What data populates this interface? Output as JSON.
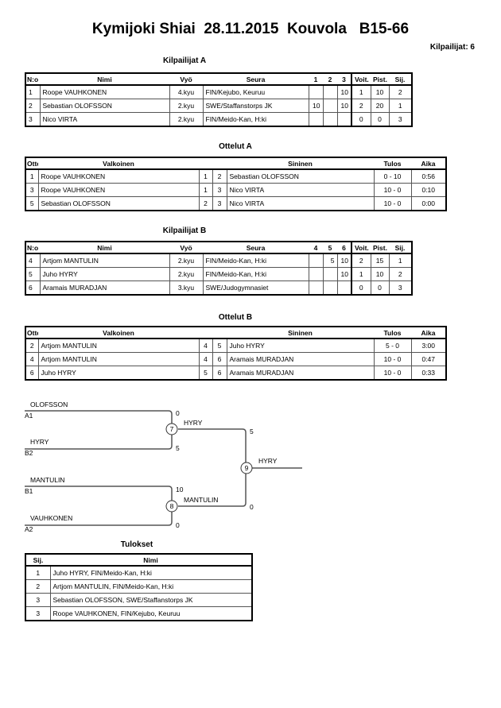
{
  "title": "Kymijoki Shiai  28.11.2015  Kouvola   B15-66",
  "competitors_count": "Kilpailijat: 6",
  "pools": [
    {
      "title": "Kilpailijat A",
      "headers": [
        "N:o",
        "Nimi",
        "Vyö",
        "Seura",
        "1",
        "2",
        "3",
        "Voit.",
        "Pist.",
        "Sij."
      ],
      "rows": [
        [
          "1",
          "Roope VAUHKONEN",
          "4.kyu",
          "FIN/Kejubo, Keuruu",
          "",
          "",
          "10",
          "1",
          "10",
          "2"
        ],
        [
          "2",
          "Sebastian OLOFSSON",
          "2.kyu",
          "SWE/Staffanstorps JK",
          "10",
          "",
          "10",
          "2",
          "20",
          "1"
        ],
        [
          "3",
          "Nico VIRTA",
          "2.kyu",
          "FIN/Meido-Kan, H:ki",
          "",
          "",
          "",
          "0",
          "0",
          "3"
        ]
      ]
    },
    {
      "title": "Kilpailijat B",
      "headers": [
        "N:o",
        "Nimi",
        "Vyö",
        "Seura",
        "4",
        "5",
        "6",
        "Voit.",
        "Pist.",
        "Sij."
      ],
      "rows": [
        [
          "4",
          "Artjom MANTULIN",
          "2.kyu",
          "FIN/Meido-Kan, H:ki",
          "",
          "5",
          "10",
          "2",
          "15",
          "1"
        ],
        [
          "5",
          "Juho HYRY",
          "2.kyu",
          "FIN/Meido-Kan, H:ki",
          "",
          "",
          "10",
          "1",
          "10",
          "2"
        ],
        [
          "6",
          "Aramais MURADJAN",
          "3.kyu",
          "SWE/Judogymnasiet",
          "",
          "",
          "",
          "0",
          "0",
          "3"
        ]
      ]
    }
  ],
  "matches": [
    {
      "title": "Ottelut A",
      "headers": [
        "Ottelu",
        "Valkoinen",
        "",
        "",
        "Sininen",
        "Tulos",
        "Aika"
      ],
      "rows": [
        [
          "1",
          "Roope VAUHKONEN",
          "1",
          "2",
          "Sebastian OLOFSSON",
          "0 - 10",
          "0:56"
        ],
        [
          "3",
          "Roope VAUHKONEN",
          "1",
          "3",
          "Nico VIRTA",
          "10 - 0",
          "0:10"
        ],
        [
          "5",
          "Sebastian OLOFSSON",
          "2",
          "3",
          "Nico VIRTA",
          "10 - 0",
          "0:00"
        ]
      ]
    },
    {
      "title": "Ottelut B",
      "headers": [
        "Ottelu",
        "Valkoinen",
        "",
        "",
        "Sininen",
        "Tulos",
        "Aika"
      ],
      "rows": [
        [
          "2",
          "Artjom MANTULIN",
          "4",
          "5",
          "Juho HYRY",
          "5 - 0",
          "3:00"
        ],
        [
          "4",
          "Artjom MANTULIN",
          "4",
          "6",
          "Aramais MURADJAN",
          "10 - 0",
          "0:47"
        ],
        [
          "6",
          "Juho HYRY",
          "5",
          "6",
          "Aramais MURADJAN",
          "10 - 0",
          "0:33"
        ]
      ]
    }
  ],
  "bracket": {
    "entries": [
      {
        "name": "OLOFSSON",
        "seed": "A1",
        "score": "0"
      },
      {
        "name": "HYRY",
        "seed": "B2",
        "score": "5"
      },
      {
        "name": "MANTULIN",
        "seed": "B1",
        "score": "10"
      },
      {
        "name": "VAUHKONEN",
        "seed": "A2",
        "score": "0"
      }
    ],
    "semis": [
      {
        "match": "7",
        "winner": "HYRY",
        "score": "5"
      },
      {
        "match": "8",
        "winner": "MANTULIN",
        "score": "0"
      }
    ],
    "final": {
      "match": "9",
      "winner": "HYRY"
    }
  },
  "results": {
    "title": "Tulokset",
    "headers": [
      "Sij.",
      "Nimi"
    ],
    "rows": [
      [
        "1",
        "Juho HYRY, FIN/Meido-Kan, H:ki"
      ],
      [
        "2",
        "Artjom MANTULIN, FIN/Meido-Kan, H:ki"
      ],
      [
        "3",
        "Sebastian OLOFSSON, SWE/Staffanstorps JK"
      ],
      [
        "3",
        "Roope VAUHKONEN, FIN/Kejubo, Keuruu"
      ]
    ]
  }
}
